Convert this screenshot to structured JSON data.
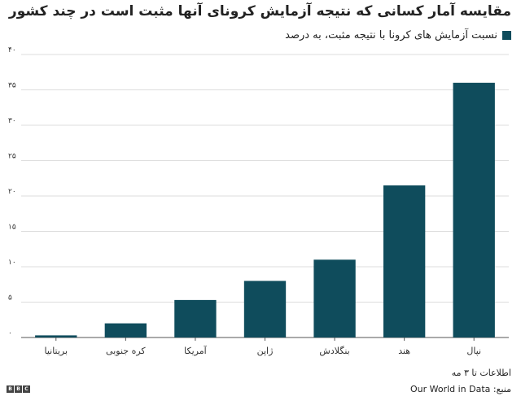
{
  "chart_data": {
    "type": "bar",
    "title": "مقایسه آمار کسانی که نتیجه آزمایش کرونای آنها مثبت است در چند کشور",
    "series": [
      {
        "name": "نسبت آزمایش های کرونا با نتیجه مثبت، به درصد",
        "color": "#0f4c5c"
      }
    ],
    "categories": [
      "بریتانیا",
      "کره جنوبی",
      "آمریکا",
      "ژاپن",
      "بنگلادش",
      "هند",
      "نپال"
    ],
    "values": [
      0.3,
      2,
      5.3,
      8,
      11,
      21.5,
      36
    ],
    "ylim": [
      0,
      40
    ],
    "ytick_values": [
      0,
      5,
      10,
      15,
      20,
      25,
      30,
      35,
      40
    ],
    "ytick_labels": [
      "۰",
      "۵",
      "۱۰",
      "۱۵",
      "۲۰",
      "۲۵",
      "۳۰",
      "۳۵",
      "۴۰"
    ],
    "grid": true
  },
  "footer": {
    "note": "اطلاعات تا ۳ مه",
    "source": "منبع: Our World in Data",
    "logo_letters": [
      "B",
      "B",
      "C"
    ]
  }
}
